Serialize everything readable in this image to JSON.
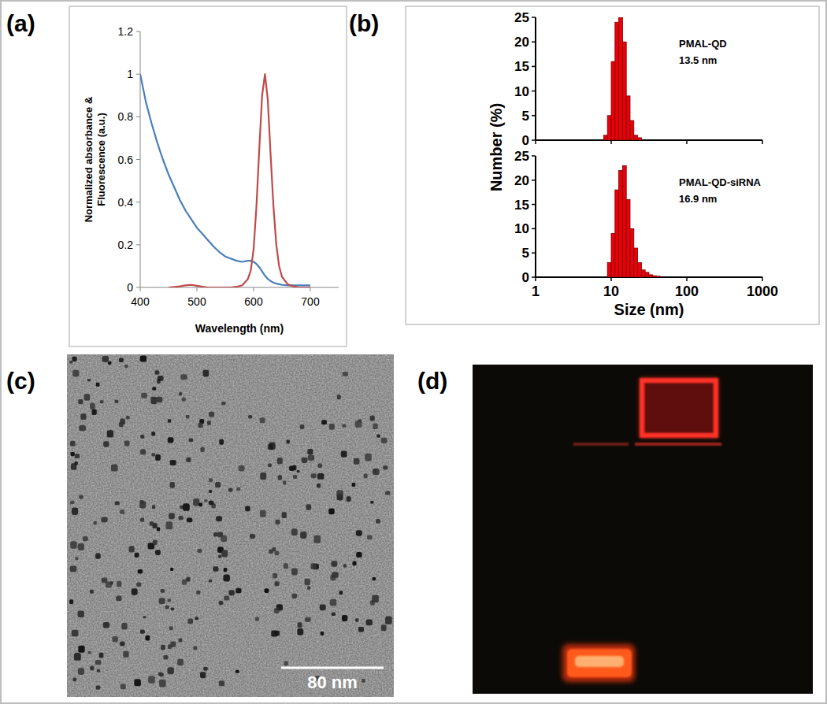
{
  "chart_data": [
    {
      "type": "line",
      "panel": "(a)",
      "xlabel": "Wavelength (nm)",
      "ylabel": "Normalized absorbance & Fluorescence (a.u.)",
      "x": [
        400,
        410,
        420,
        430,
        440,
        450,
        460,
        470,
        480,
        490,
        500,
        510,
        520,
        530,
        540,
        550,
        560,
        570,
        580,
        590,
        595,
        600,
        605,
        610,
        615,
        620,
        625,
        630,
        635,
        640,
        645,
        650,
        660,
        670,
        680,
        690,
        700
      ],
      "series": [
        {
          "name": "Absorbance",
          "color": "#4a7ebb",
          "values": [
            1.0,
            0.87,
            0.77,
            0.68,
            0.6,
            0.53,
            0.47,
            0.41,
            0.36,
            0.32,
            0.28,
            0.25,
            0.22,
            0.19,
            0.165,
            0.145,
            0.135,
            0.125,
            0.12,
            0.125,
            0.125,
            0.12,
            0.11,
            0.095,
            0.075,
            0.055,
            0.04,
            0.03,
            0.022,
            0.018,
            0.015,
            0.012,
            0.01,
            0.01,
            0.01,
            0.01,
            0.01
          ]
        },
        {
          "name": "Fluorescence",
          "color": "#be4b48",
          "values": [
            null,
            null,
            null,
            null,
            null,
            0,
            0.002,
            0.005,
            0.01,
            0.012,
            0.008,
            0.003,
            0,
            0,
            0,
            0,
            0,
            0.003,
            0.01,
            0.04,
            0.08,
            0.18,
            0.38,
            0.65,
            0.9,
            1.0,
            0.88,
            0.62,
            0.38,
            0.2,
            0.1,
            0.05,
            0.015,
            0.005,
            0,
            0,
            0
          ]
        }
      ],
      "xlim": [
        400,
        750
      ],
      "xticks": [
        400,
        500,
        600,
        700
      ],
      "ylim": [
        0,
        1.2
      ],
      "yticks": [
        0,
        0.2,
        0.4,
        0.6,
        0.8,
        1,
        1.2
      ]
    },
    {
      "type": "histogram",
      "panel": "(b)",
      "xlabel": "Size (nm)",
      "ylabel": "Number (%)",
      "log": "x",
      "xlim": [
        1,
        1000
      ],
      "xticks": [
        1,
        10,
        100,
        1000
      ],
      "ylim": [
        0,
        25
      ],
      "yticks": [
        0,
        5,
        10,
        15,
        20,
        25
      ],
      "bins": [
        7.94,
        8.91,
        10.0,
        11.22,
        12.59,
        14.13,
        15.85,
        17.78,
        19.95,
        22.39,
        25.12,
        28.18,
        31.62,
        35.48,
        39.81,
        44.67
      ],
      "series": [
        {
          "name": "PMAL-QD",
          "annotation": "13.5 nm",
          "color": "#e8000b",
          "values": [
            1,
            5,
            16,
            24,
            25,
            20,
            9,
            4,
            1,
            0.5,
            0,
            0,
            0,
            0,
            0
          ]
        },
        {
          "name": "PMAL-QD-siRNA",
          "annotation": "16.9 nm",
          "color": "#e8000b",
          "values": [
            0,
            3,
            9,
            18,
            22,
            23,
            16,
            10,
            6,
            3,
            1.5,
            1,
            0.5,
            0.3,
            0.2
          ]
        }
      ]
    },
    {
      "type": "image",
      "panel": "(c)",
      "scale_bar": "80 nm"
    },
    {
      "type": "image",
      "panel": "(d)"
    }
  ]
}
